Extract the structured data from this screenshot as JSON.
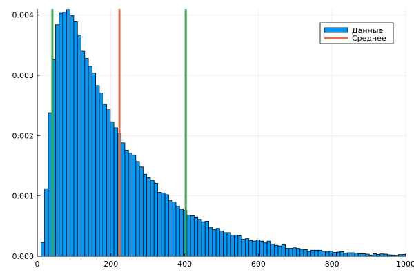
{
  "chart_data": {
    "type": "bar",
    "title": "",
    "xlabel": "",
    "ylabel": "",
    "xlim": [
      0,
      1000
    ],
    "ylim": [
      0,
      0.0041
    ],
    "grid": true,
    "legend_position": "top-right",
    "x_ticks": [
      0,
      200,
      400,
      600,
      800,
      1000
    ],
    "x_tick_labels": [
      "0",
      "200",
      "400",
      "600",
      "800",
      "1000"
    ],
    "y_ticks": [
      0,
      0.001,
      0.002,
      0.003,
      0.004
    ],
    "y_tick_labels": [
      "0.000",
      "0.001",
      "0.002",
      "0.003",
      "0.004"
    ],
    "histogram": {
      "name": "Данные",
      "color": "#009af9",
      "bin_start": 10,
      "bin_end": 1000,
      "values": [
        0.00023,
        0.00112,
        0.00238,
        0.00326,
        0.00384,
        0.00403,
        0.00405,
        0.00409,
        0.00399,
        0.00389,
        0.00367,
        0.0034,
        0.00328,
        0.00315,
        0.00304,
        0.00283,
        0.00271,
        0.00252,
        0.00243,
        0.00223,
        0.00213,
        0.00204,
        0.00188,
        0.00176,
        0.00171,
        0.00168,
        0.00157,
        0.00148,
        0.00136,
        0.0013,
        0.00126,
        0.00121,
        0.00106,
        0.00105,
        0.00102,
        0.00092,
        0.0009,
        0.00083,
        0.00078,
        0.00076,
        0.00068,
        0.00067,
        0.00065,
        0.00061,
        0.00057,
        0.00058,
        0.00048,
        0.00044,
        0.00046,
        0.00042,
        0.00039,
        0.00039,
        0.00035,
        0.00035,
        0.00034,
        0.00028,
        0.00029,
        0.00026,
        0.00025,
        0.00027,
        0.00025,
        0.00022,
        0.00025,
        0.0002,
        0.00018,
        0.00017,
        0.00019,
        0.00013,
        0.00013,
        0.00014,
        0.00013,
        0.000115,
        0.00011,
        8e-05,
        0.0001,
        0.0001,
        0.0001,
        8.3e-05,
        7.2e-05,
        8.7e-05,
        6.4e-05,
        6.8e-05,
        7.6e-05,
        4.9e-05,
        5.7e-05,
        5.7e-05,
        5.3e-05,
        4.2e-05,
        4.2e-05,
        3.4e-05,
        1.9e-05,
        4.2e-05,
        3e-05,
        3.8e-05,
        3.4e-05,
        2.3e-05,
        2e-05,
        1.5e-05,
        2.7e-05,
        3e-05
      ]
    },
    "vlines": [
      {
        "name": "Среднее",
        "x": 223,
        "color": "#e26f46"
      },
      {
        "x": 41,
        "color": "#3ea44e"
      },
      {
        "x": 403,
        "color": "#3ea44e"
      }
    ],
    "legend": [
      {
        "label": "Данные",
        "color": "#009af9",
        "kind": "patch"
      },
      {
        "label": "Среднее",
        "color": "#e26f46",
        "kind": "line"
      }
    ]
  }
}
